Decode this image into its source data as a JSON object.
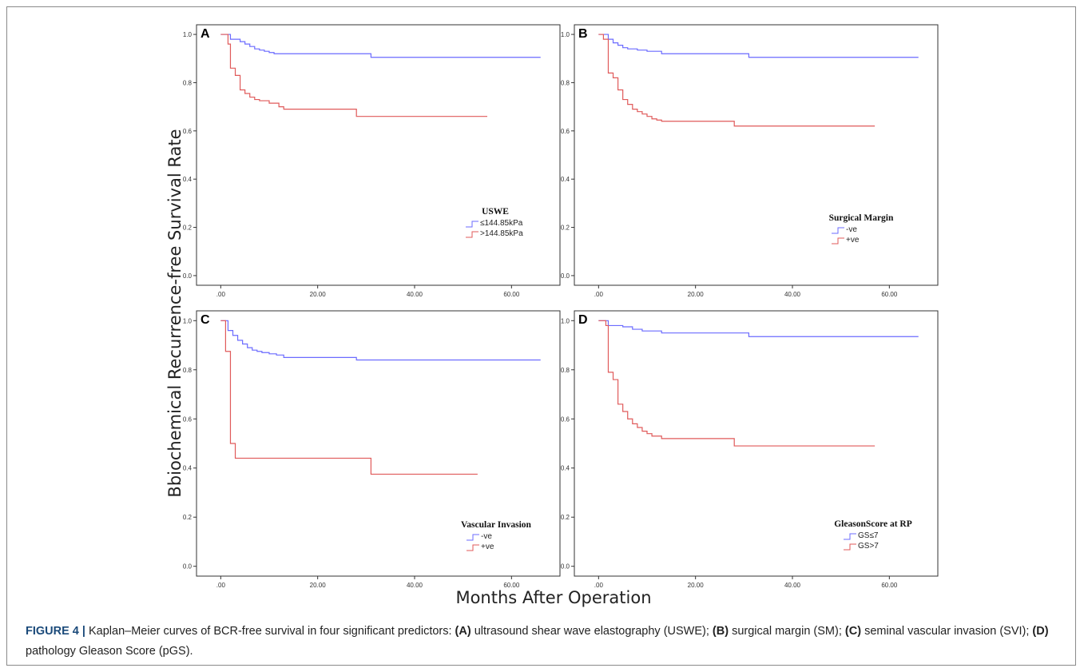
{
  "figure": {
    "ylabel": "Bbiochemical Recurrence-free Survival Rate",
    "xlabel": "Months After Operation"
  },
  "caption": {
    "label": "FIGURE 4 |",
    "text_1": " Kaplan–Meier curves of BCR-free survival in four significant predictors: ",
    "a_label": "(A)",
    "text_2": " ultrasound shear wave elastography (USWE); ",
    "b_label": "(B)",
    "text_3": " surgical margin (SM); ",
    "c_label": "(C)",
    "text_4": " seminal vascular invasion (SVI); ",
    "d_label": "(D)",
    "text_5": " pathology Gleason Score (pGS)."
  },
  "colors": {
    "series_blue": "#6b6bff",
    "series_red": "#e05a5a",
    "axis": "#333333"
  },
  "chart_data": [
    {
      "type": "line",
      "step": true,
      "panel": "A",
      "xlim": [
        -5,
        70
      ],
      "ylim": [
        -0.04,
        1.04
      ],
      "xticks": [
        ".00",
        "20.00",
        "40.00",
        "60.00"
      ],
      "xtick_values": [
        0,
        20,
        40,
        60
      ],
      "yticks": [
        "0.0",
        "0.2",
        "0.4",
        "0.6",
        "0.8",
        "1.0"
      ],
      "ytick_values": [
        0,
        0.2,
        0.4,
        0.6,
        0.8,
        1.0
      ],
      "legend_title": "USWE",
      "legend_position": "lower-right",
      "series": [
        {
          "name": "≤144.85kPa",
          "color": "#6b6bff",
          "x": [
            0,
            2,
            4,
            5,
            6,
            7,
            8,
            9,
            10,
            11,
            31,
            66
          ],
          "y": [
            1.0,
            0.98,
            0.97,
            0.96,
            0.95,
            0.94,
            0.935,
            0.93,
            0.925,
            0.92,
            0.905,
            0.905
          ]
        },
        {
          "name": ">144.85kPa",
          "color": "#e05a5a",
          "x": [
            0,
            1.5,
            2,
            3,
            4,
            5,
            6,
            7,
            8,
            10,
            12,
            13,
            28,
            55
          ],
          "y": [
            1.0,
            0.96,
            0.86,
            0.83,
            0.77,
            0.755,
            0.74,
            0.73,
            0.725,
            0.715,
            0.7,
            0.69,
            0.66,
            0.66
          ]
        }
      ]
    },
    {
      "type": "line",
      "step": true,
      "panel": "B",
      "xlim": [
        -5,
        70
      ],
      "ylim": [
        -0.04,
        1.04
      ],
      "xticks": [
        ".00",
        "20.00",
        "40.00",
        "60.00"
      ],
      "xtick_values": [
        0,
        20,
        40,
        60
      ],
      "yticks": [
        "0.0",
        "0.2",
        "0.4",
        "0.6",
        "0.8",
        "1.0"
      ],
      "ytick_values": [
        0,
        0.2,
        0.4,
        0.6,
        0.8,
        1.0
      ],
      "legend_title": "Surgical Margin",
      "legend_position": "lower-right",
      "series": [
        {
          "name": "-ve",
          "color": "#6b6bff",
          "x": [
            0,
            2,
            3,
            4,
            5,
            6,
            8,
            10,
            13,
            31,
            66
          ],
          "y": [
            1.0,
            0.98,
            0.965,
            0.955,
            0.945,
            0.94,
            0.935,
            0.93,
            0.92,
            0.905,
            0.905
          ]
        },
        {
          "name": "+ve",
          "color": "#e05a5a",
          "x": [
            0,
            1,
            2,
            3,
            4,
            5,
            6,
            7,
            8,
            9,
            10,
            11,
            12,
            13,
            28,
            57
          ],
          "y": [
            1.0,
            0.98,
            0.84,
            0.82,
            0.77,
            0.73,
            0.71,
            0.69,
            0.68,
            0.67,
            0.66,
            0.65,
            0.645,
            0.64,
            0.62,
            0.62
          ]
        }
      ]
    },
    {
      "type": "line",
      "step": true,
      "panel": "C",
      "xlim": [
        -5,
        70
      ],
      "ylim": [
        -0.04,
        1.04
      ],
      "xticks": [
        ".00",
        "20.00",
        "40.00",
        "60.00"
      ],
      "xtick_values": [
        0,
        20,
        40,
        60
      ],
      "yticks": [
        "0.0",
        "0.2",
        "0.4",
        "0.6",
        "0.8",
        "1.0"
      ],
      "ytick_values": [
        0,
        0.2,
        0.4,
        0.6,
        0.8,
        1.0
      ],
      "legend_title": "Vascular Invasion",
      "legend_position": "lower-right",
      "series": [
        {
          "name": "-ve",
          "color": "#6b6bff",
          "x": [
            0,
            1.5,
            2.5,
            3.5,
            4.5,
            5.5,
            6.5,
            7.5,
            8.5,
            10,
            11.5,
            13,
            28,
            66
          ],
          "y": [
            1.0,
            0.96,
            0.94,
            0.92,
            0.905,
            0.89,
            0.88,
            0.875,
            0.87,
            0.865,
            0.86,
            0.85,
            0.84,
            0.84
          ]
        },
        {
          "name": "+ve",
          "color": "#e05a5a",
          "x": [
            0,
            1,
            2,
            3,
            31,
            53
          ],
          "y": [
            1.0,
            0.875,
            0.5,
            0.44,
            0.375,
            0.375
          ]
        }
      ]
    },
    {
      "type": "line",
      "step": true,
      "panel": "D",
      "xlim": [
        -5,
        70
      ],
      "ylim": [
        -0.04,
        1.04
      ],
      "xticks": [
        ".00",
        "20.00",
        "40.00",
        "60.00"
      ],
      "xtick_values": [
        0,
        20,
        40,
        60
      ],
      "yticks": [
        "0.0",
        "0.2",
        "0.4",
        "0.6",
        "0.8",
        "1.0"
      ],
      "ytick_values": [
        0,
        0.2,
        0.4,
        0.6,
        0.8,
        1.0
      ],
      "legend_title": "GleasonScore at RP",
      "legend_position": "lower-right",
      "series": [
        {
          "name": "GS≤7",
          "color": "#6b6bff",
          "x": [
            0,
            2,
            5,
            7,
            9,
            13,
            31,
            66
          ],
          "y": [
            1.0,
            0.98,
            0.975,
            0.965,
            0.958,
            0.95,
            0.935,
            0.935
          ]
        },
        {
          "name": "GS>7",
          "color": "#e05a5a",
          "x": [
            0,
            1.5,
            2,
            3,
            4,
            5,
            6,
            7,
            8,
            9,
            10,
            11,
            13,
            28,
            57
          ],
          "y": [
            1.0,
            0.98,
            0.79,
            0.76,
            0.66,
            0.63,
            0.6,
            0.58,
            0.565,
            0.55,
            0.54,
            0.53,
            0.52,
            0.49,
            0.49
          ]
        }
      ]
    }
  ]
}
